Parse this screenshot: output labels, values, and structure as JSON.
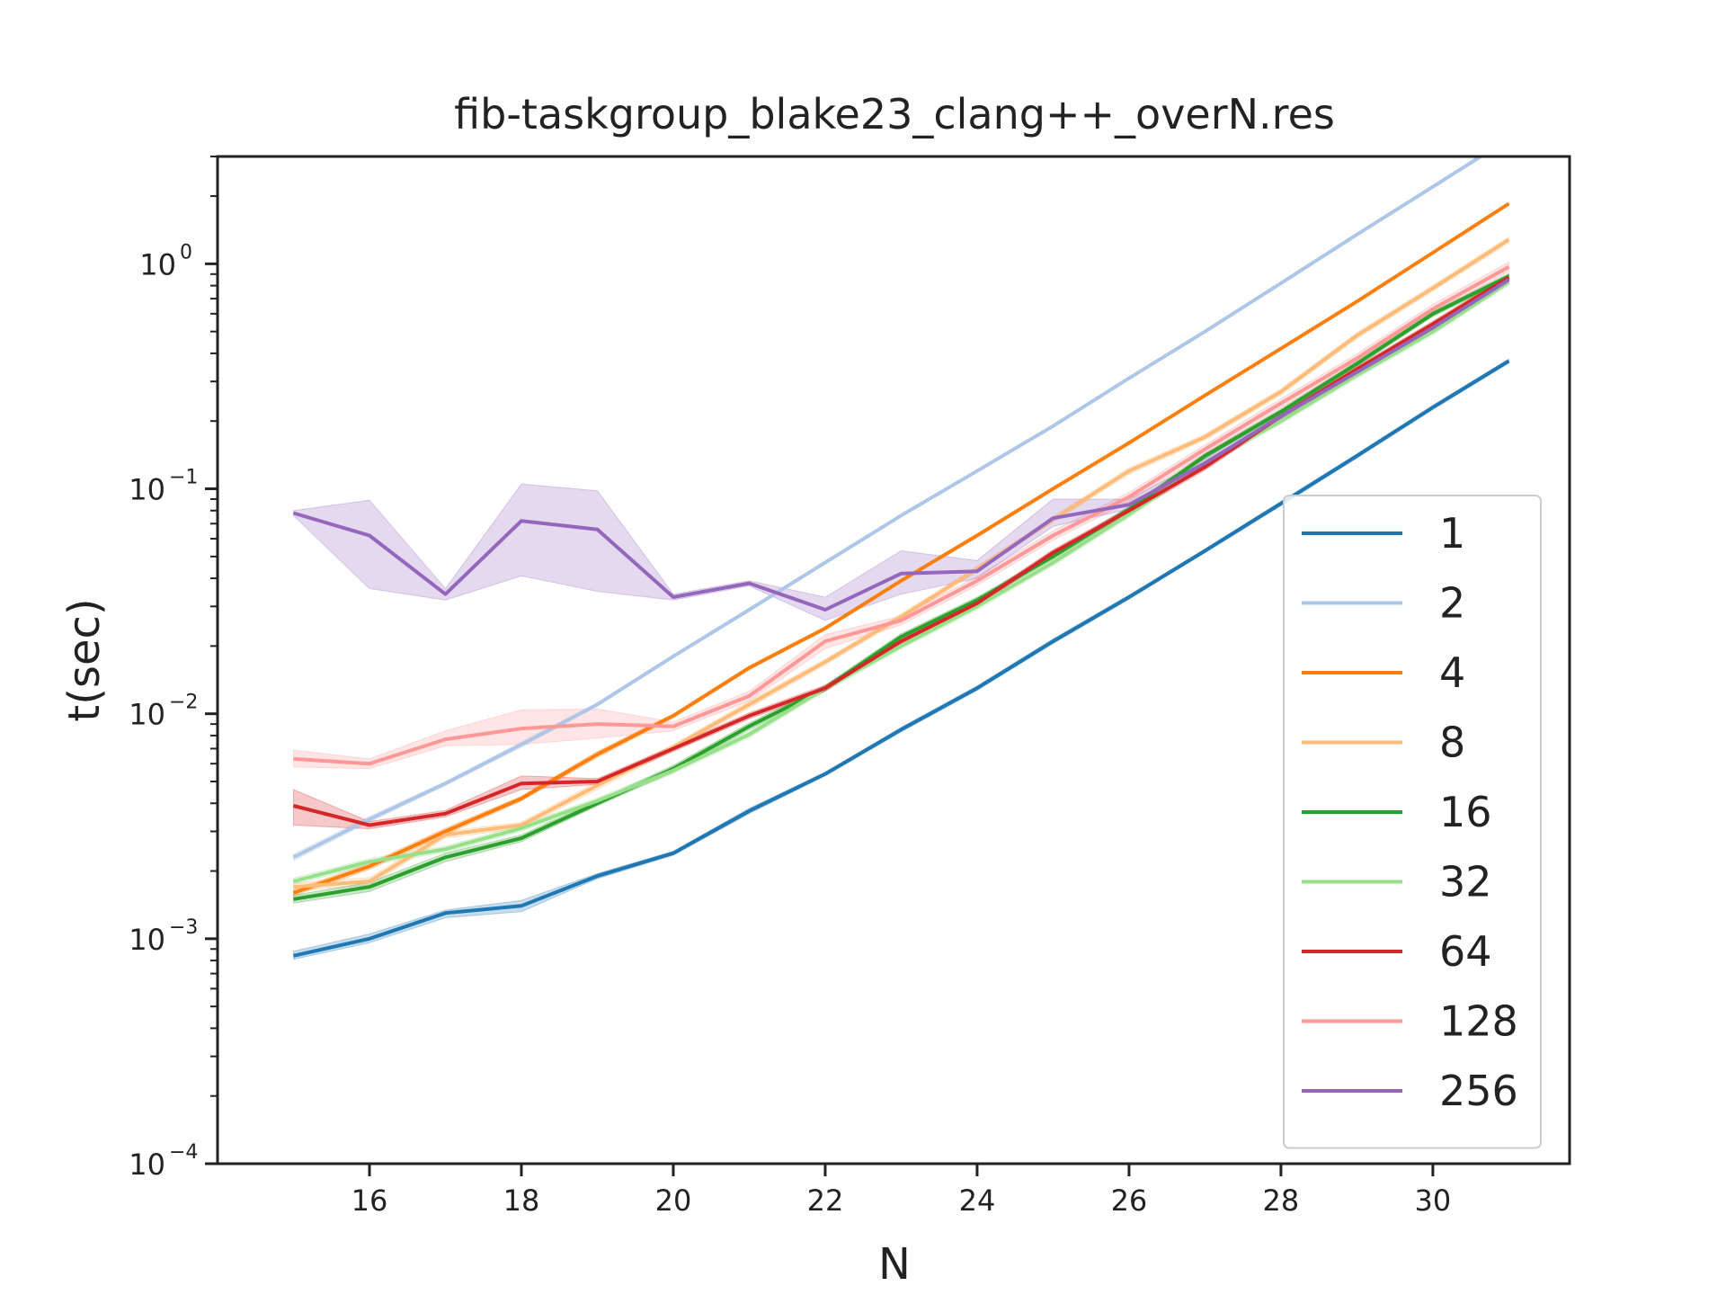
{
  "chart_data": {
    "type": "line",
    "title": "fib-taskgroup_blake23_clang++_overN.res",
    "xlabel": "N",
    "ylabel": "t(sec)",
    "xlim": [
      14.0,
      31.8
    ],
    "ylim": [
      0.0001,
      3.0
    ],
    "yscale": "log",
    "x_ticks": [
      16,
      18,
      20,
      22,
      24,
      26,
      28,
      30
    ],
    "y_ticks": [
      {
        "value": 0.0001,
        "base": "10",
        "exp": "−4"
      },
      {
        "value": 0.001,
        "base": "10",
        "exp": "−3"
      },
      {
        "value": 0.01,
        "base": "10",
        "exp": "−2"
      },
      {
        "value": 0.1,
        "base": "10",
        "exp": "−1"
      },
      {
        "value": 1.0,
        "base": "10",
        "exp": "0"
      }
    ],
    "grid": false,
    "legend_position": "lower-right",
    "x": [
      15,
      16,
      17,
      18,
      19,
      20,
      21,
      22,
      23,
      24,
      25,
      26,
      27,
      28,
      29,
      30,
      31
    ],
    "series": [
      {
        "name": "1",
        "color": "#1f77b4",
        "values": [
          0.00084,
          0.001,
          0.0013,
          0.0014,
          0.0019,
          0.0024,
          0.0037,
          0.0054,
          0.0085,
          0.013,
          0.021,
          0.033,
          0.053,
          0.086,
          0.14,
          0.23,
          0.37
        ],
        "lower": [
          0.00081,
          0.00096,
          0.00124,
          0.00132,
          0.00185,
          0.00235,
          0.0036,
          0.0053,
          0.0083,
          0.0127,
          0.0205,
          0.0323,
          0.052,
          0.084,
          0.137,
          0.225,
          0.362
        ],
        "upper": [
          0.00088,
          0.00105,
          0.00134,
          0.00148,
          0.00195,
          0.00245,
          0.0038,
          0.0055,
          0.0087,
          0.0133,
          0.0215,
          0.0337,
          0.054,
          0.088,
          0.143,
          0.235,
          0.378
        ]
      },
      {
        "name": "2",
        "color": "#aec7e8",
        "values": [
          0.0023,
          0.0034,
          0.0049,
          0.0073,
          0.011,
          0.018,
          0.029,
          0.047,
          0.076,
          0.12,
          0.19,
          0.31,
          0.5,
          0.82,
          1.35,
          2.2,
          3.6
        ],
        "lower": [
          0.00222,
          0.0033,
          0.0048,
          0.0071,
          0.0108,
          0.0177,
          0.0286,
          0.0464,
          0.0752,
          0.119,
          0.188,
          0.307,
          0.496,
          0.813,
          1.34,
          2.18,
          3.57
        ],
        "upper": [
          0.00238,
          0.0035,
          0.005,
          0.0075,
          0.0112,
          0.0183,
          0.0294,
          0.0476,
          0.0768,
          0.121,
          0.192,
          0.313,
          0.504,
          0.827,
          1.36,
          2.22,
          3.63
        ]
      },
      {
        "name": "4",
        "color": "#ff7f0e",
        "values": [
          0.0016,
          0.0021,
          0.003,
          0.0042,
          0.0066,
          0.0098,
          0.016,
          0.024,
          0.039,
          0.062,
          0.1,
          0.16,
          0.26,
          0.42,
          0.68,
          1.12,
          1.85
        ],
        "lower": [
          0.00155,
          0.00203,
          0.0029,
          0.0041,
          0.0064,
          0.0096,
          0.0157,
          0.0236,
          0.0384,
          0.061,
          0.099,
          0.158,
          0.257,
          0.416,
          0.674,
          1.11,
          1.83
        ],
        "upper": [
          0.00165,
          0.00217,
          0.0031,
          0.0043,
          0.0068,
          0.01,
          0.0163,
          0.0244,
          0.0396,
          0.063,
          0.101,
          0.162,
          0.263,
          0.424,
          0.686,
          1.13,
          1.87
        ]
      },
      {
        "name": "8",
        "color": "#ffbb78",
        "values": [
          0.0017,
          0.0018,
          0.0029,
          0.0032,
          0.0048,
          0.0071,
          0.011,
          0.017,
          0.027,
          0.044,
          0.073,
          0.12,
          0.17,
          0.27,
          0.48,
          0.78,
          1.28
        ],
        "lower": [
          0.00163,
          0.00173,
          0.0028,
          0.0031,
          0.0046,
          0.0069,
          0.0106,
          0.0165,
          0.0262,
          0.0428,
          0.071,
          0.116,
          0.165,
          0.262,
          0.465,
          0.757,
          1.24
        ],
        "upper": [
          0.00177,
          0.00187,
          0.003,
          0.0033,
          0.005,
          0.0073,
          0.0114,
          0.0175,
          0.0278,
          0.0452,
          0.075,
          0.124,
          0.175,
          0.278,
          0.495,
          0.803,
          1.32
        ]
      },
      {
        "name": "16",
        "color": "#2ca02c",
        "values": [
          0.0015,
          0.0017,
          0.0023,
          0.0028,
          0.004,
          0.0057,
          0.0088,
          0.013,
          0.022,
          0.032,
          0.05,
          0.081,
          0.14,
          0.22,
          0.36,
          0.6,
          0.88
        ],
        "lower": [
          0.00144,
          0.00162,
          0.0022,
          0.0027,
          0.0039,
          0.0055,
          0.0085,
          0.0126,
          0.0213,
          0.031,
          0.0485,
          0.0785,
          0.136,
          0.214,
          0.35,
          0.583,
          0.855
        ],
        "upper": [
          0.00156,
          0.00178,
          0.0024,
          0.0029,
          0.0041,
          0.0059,
          0.0091,
          0.0134,
          0.0227,
          0.033,
          0.0515,
          0.0835,
          0.144,
          0.226,
          0.37,
          0.617,
          0.905
        ]
      },
      {
        "name": "32",
        "color": "#98df8a",
        "values": [
          0.0018,
          0.0022,
          0.0025,
          0.0031,
          0.0041,
          0.0056,
          0.0081,
          0.013,
          0.02,
          0.03,
          0.047,
          0.077,
          0.13,
          0.2,
          0.32,
          0.5,
          0.83
        ],
        "lower": [
          0.00174,
          0.00213,
          0.00242,
          0.003,
          0.00397,
          0.00542,
          0.00784,
          0.0126,
          0.0194,
          0.029,
          0.0455,
          0.0745,
          0.126,
          0.194,
          0.31,
          0.484,
          0.805
        ],
        "upper": [
          0.00186,
          0.00227,
          0.00258,
          0.0032,
          0.00423,
          0.00578,
          0.00836,
          0.0134,
          0.0206,
          0.031,
          0.0485,
          0.0795,
          0.134,
          0.206,
          0.33,
          0.516,
          0.855
        ]
      },
      {
        "name": "64",
        "color": "#d62728",
        "values": [
          0.0039,
          0.0032,
          0.0036,
          0.0049,
          0.005,
          0.007,
          0.0098,
          0.013,
          0.021,
          0.031,
          0.052,
          0.08,
          0.125,
          0.21,
          0.34,
          0.54,
          0.87
        ],
        "lower": [
          0.0032,
          0.00308,
          0.00348,
          0.0046,
          0.00485,
          0.0068,
          0.0095,
          0.0126,
          0.0204,
          0.0301,
          0.0504,
          0.0776,
          0.121,
          0.204,
          0.33,
          0.524,
          0.844
        ],
        "upper": [
          0.0046,
          0.00332,
          0.00372,
          0.0053,
          0.00515,
          0.0072,
          0.0101,
          0.0134,
          0.0216,
          0.0319,
          0.0536,
          0.0824,
          0.129,
          0.216,
          0.35,
          0.556,
          0.896
        ]
      },
      {
        "name": "128",
        "color": "#ff9896",
        "values": [
          0.0063,
          0.006,
          0.0077,
          0.0086,
          0.009,
          0.0088,
          0.012,
          0.021,
          0.026,
          0.039,
          0.062,
          0.092,
          0.15,
          0.24,
          0.38,
          0.63,
          0.97
        ],
        "lower": [
          0.0058,
          0.0057,
          0.0072,
          0.0073,
          0.0078,
          0.0084,
          0.0114,
          0.0195,
          0.0248,
          0.0372,
          0.059,
          0.0876,
          0.143,
          0.229,
          0.362,
          0.6,
          0.924
        ],
        "upper": [
          0.0069,
          0.0063,
          0.0084,
          0.0104,
          0.0105,
          0.0092,
          0.0126,
          0.0225,
          0.0272,
          0.0408,
          0.065,
          0.0964,
          0.157,
          0.251,
          0.398,
          0.66,
          1.02
        ]
      },
      {
        "name": "256",
        "color": "#9467bd",
        "values": [
          0.078,
          0.062,
          0.034,
          0.072,
          0.066,
          0.033,
          0.038,
          0.029,
          0.042,
          0.043,
          0.074,
          0.085,
          0.13,
          0.21,
          0.33,
          0.52,
          0.85
        ],
        "lower": [
          0.076,
          0.036,
          0.032,
          0.041,
          0.035,
          0.032,
          0.037,
          0.026,
          0.034,
          0.04,
          0.068,
          0.081,
          0.124,
          0.2,
          0.316,
          0.5,
          0.82
        ],
        "upper": [
          0.08,
          0.089,
          0.036,
          0.105,
          0.098,
          0.034,
          0.039,
          0.033,
          0.053,
          0.048,
          0.09,
          0.09,
          0.136,
          0.22,
          0.344,
          0.54,
          0.88
        ]
      }
    ]
  }
}
